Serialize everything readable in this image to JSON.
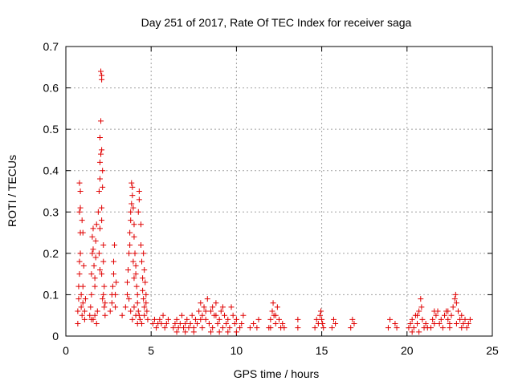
{
  "chart_data": {
    "type": "scatter",
    "title": "Day 251 of 2017, Rate Of TEC Index for receiver saga",
    "xlabel": "GPS time / hours",
    "ylabel": "ROTI / TECUs",
    "xlim": [
      0,
      25
    ],
    "ylim": [
      0,
      0.7
    ],
    "xticks": [
      "0",
      "5",
      "10",
      "15",
      "20",
      "25"
    ],
    "yticks": [
      "0",
      "0.1",
      "0.2",
      "0.3",
      "0.4",
      "0.5",
      "0.6",
      "0.7"
    ],
    "grid": true,
    "marker": "+",
    "color": "#e00000",
    "points": [
      [
        0.7,
        0.03
      ],
      [
        0.7,
        0.06
      ],
      [
        0.75,
        0.09
      ],
      [
        0.75,
        0.12
      ],
      [
        0.8,
        0.15
      ],
      [
        0.8,
        0.18
      ],
      [
        0.85,
        0.2
      ],
      [
        0.85,
        0.25
      ],
      [
        0.8,
        0.3
      ],
      [
        0.85,
        0.31
      ],
      [
        0.85,
        0.35
      ],
      [
        0.8,
        0.37
      ],
      [
        0.9,
        0.1
      ],
      [
        0.9,
        0.07
      ],
      [
        0.95,
        0.05
      ],
      [
        1.0,
        0.08
      ],
      [
        1.0,
        0.12
      ],
      [
        1.05,
        0.17
      ],
      [
        1.0,
        0.25
      ],
      [
        0.95,
        0.28
      ],
      [
        1.1,
        0.06
      ],
      [
        1.1,
        0.04
      ],
      [
        1.15,
        0.09
      ],
      [
        1.4,
        0.05
      ],
      [
        1.45,
        0.07
      ],
      [
        1.5,
        0.1
      ],
      [
        1.5,
        0.15
      ],
      [
        1.55,
        0.2
      ],
      [
        1.55,
        0.24
      ],
      [
        1.6,
        0.26
      ],
      [
        1.6,
        0.21
      ],
      [
        1.65,
        0.17
      ],
      [
        1.7,
        0.14
      ],
      [
        1.7,
        0.12
      ],
      [
        1.75,
        0.19
      ],
      [
        1.75,
        0.23
      ],
      [
        1.8,
        0.27
      ],
      [
        1.6,
        0.04
      ],
      [
        1.7,
        0.05
      ],
      [
        1.8,
        0.03
      ],
      [
        1.85,
        0.06
      ],
      [
        1.5,
        0.04
      ],
      [
        1.9,
        0.3
      ],
      [
        1.95,
        0.35
      ],
      [
        2.0,
        0.38
      ],
      [
        2.0,
        0.42
      ],
      [
        2.05,
        0.44
      ],
      [
        2.1,
        0.45
      ],
      [
        2.0,
        0.48
      ],
      [
        2.05,
        0.52
      ],
      [
        2.1,
        0.62
      ],
      [
        2.1,
        0.63
      ],
      [
        2.05,
        0.64
      ],
      [
        2.15,
        0.4
      ],
      [
        2.15,
        0.36
      ],
      [
        2.1,
        0.31
      ],
      [
        2.0,
        0.26
      ],
      [
        2.2,
        0.22
      ],
      [
        2.2,
        0.18
      ],
      [
        2.1,
        0.15
      ],
      [
        2.25,
        0.12
      ],
      [
        2.2,
        0.1
      ],
      [
        2.3,
        0.08
      ],
      [
        2.3,
        0.05
      ],
      [
        1.95,
        0.2
      ],
      [
        2.0,
        0.16
      ],
      [
        2.15,
        0.09
      ],
      [
        2.25,
        0.07
      ],
      [
        2.1,
        0.28
      ],
      [
        2.6,
        0.06
      ],
      [
        2.7,
        0.08
      ],
      [
        2.7,
        0.1
      ],
      [
        2.75,
        0.12
      ],
      [
        2.8,
        0.15
      ],
      [
        2.8,
        0.18
      ],
      [
        2.85,
        0.22
      ],
      [
        2.9,
        0.1
      ],
      [
        2.9,
        0.07
      ],
      [
        2.95,
        0.13
      ],
      [
        3.3,
        0.05
      ],
      [
        3.5,
        0.07
      ],
      [
        3.6,
        0.1
      ],
      [
        3.6,
        0.13
      ],
      [
        3.65,
        0.16
      ],
      [
        3.7,
        0.2
      ],
      [
        3.75,
        0.22
      ],
      [
        3.75,
        0.25
      ],
      [
        3.8,
        0.28
      ],
      [
        3.8,
        0.3
      ],
      [
        3.85,
        0.32
      ],
      [
        3.9,
        0.34
      ],
      [
        3.9,
        0.36
      ],
      [
        3.85,
        0.37
      ],
      [
        3.95,
        0.31
      ],
      [
        4.0,
        0.27
      ],
      [
        4.0,
        0.24
      ],
      [
        4.05,
        0.2
      ],
      [
        4.1,
        0.17
      ],
      [
        4.1,
        0.15
      ],
      [
        4.15,
        0.12
      ],
      [
        4.2,
        0.1
      ],
      [
        4.2,
        0.08
      ],
      [
        4.25,
        0.06
      ],
      [
        4.3,
        0.05
      ],
      [
        4.35,
        0.04
      ],
      [
        4.25,
        0.3
      ],
      [
        4.3,
        0.35
      ],
      [
        4.3,
        0.33
      ],
      [
        4.4,
        0.27
      ],
      [
        4.4,
        0.22
      ],
      [
        4.45,
        0.18
      ],
      [
        4.5,
        0.14
      ],
      [
        4.5,
        0.11
      ],
      [
        4.55,
        0.09
      ],
      [
        4.6,
        0.07
      ],
      [
        4.6,
        0.05
      ],
      [
        4.65,
        0.13
      ],
      [
        4.7,
        0.1
      ],
      [
        4.7,
        0.08
      ],
      [
        4.75,
        0.06
      ],
      [
        4.8,
        0.04
      ],
      [
        3.7,
        0.09
      ],
      [
        3.8,
        0.06
      ],
      [
        3.9,
        0.04
      ],
      [
        4.0,
        0.07
      ],
      [
        4.1,
        0.05
      ],
      [
        4.2,
        0.03
      ],
      [
        4.45,
        0.03
      ],
      [
        4.55,
        0.2
      ],
      [
        4.6,
        0.16
      ],
      [
        4.0,
        0.14
      ],
      [
        3.95,
        0.18
      ],
      [
        5.1,
        0.03
      ],
      [
        5.2,
        0.04
      ],
      [
        5.3,
        0.02
      ],
      [
        5.4,
        0.03
      ],
      [
        5.5,
        0.04
      ],
      [
        5.6,
        0.03
      ],
      [
        5.7,
        0.05
      ],
      [
        5.8,
        0.02
      ],
      [
        5.9,
        0.03
      ],
      [
        6.0,
        0.04
      ],
      [
        6.3,
        0.02
      ],
      [
        6.4,
        0.03
      ],
      [
        6.5,
        0.04
      ],
      [
        6.6,
        0.02
      ],
      [
        6.7,
        0.03
      ],
      [
        6.8,
        0.05
      ],
      [
        6.9,
        0.02
      ],
      [
        7.0,
        0.03
      ],
      [
        7.1,
        0.04
      ],
      [
        7.2,
        0.02
      ],
      [
        7.3,
        0.03
      ],
      [
        7.4,
        0.05
      ],
      [
        7.5,
        0.02
      ],
      [
        7.6,
        0.04
      ],
      [
        7.7,
        0.03
      ],
      [
        7.8,
        0.06
      ],
      [
        7.9,
        0.08
      ],
      [
        8.0,
        0.05
      ],
      [
        8.1,
        0.07
      ],
      [
        8.2,
        0.04
      ],
      [
        8.3,
        0.09
      ],
      [
        8.4,
        0.03
      ],
      [
        8.5,
        0.06
      ],
      [
        8.6,
        0.02
      ],
      [
        8.7,
        0.05
      ],
      [
        8.8,
        0.08
      ],
      [
        8.9,
        0.03
      ],
      [
        9.0,
        0.04
      ],
      [
        9.1,
        0.06
      ],
      [
        9.2,
        0.02
      ],
      [
        9.3,
        0.05
      ],
      [
        9.4,
        0.03
      ],
      [
        9.5,
        0.04
      ],
      [
        9.6,
        0.02
      ],
      [
        9.7,
        0.07
      ],
      [
        9.8,
        0.05
      ],
      [
        9.9,
        0.03
      ],
      [
        10.0,
        0.04
      ],
      [
        10.2,
        0.02
      ],
      [
        10.3,
        0.03
      ],
      [
        10.4,
        0.05
      ],
      [
        6.5,
        0.01
      ],
      [
        7.0,
        0.01
      ],
      [
        7.5,
        0.01
      ],
      [
        8.0,
        0.02
      ],
      [
        8.5,
        0.01
      ],
      [
        9.0,
        0.01
      ],
      [
        9.5,
        0.01
      ],
      [
        10.0,
        0.01
      ],
      [
        8.2,
        0.06
      ],
      [
        8.6,
        0.07
      ],
      [
        9.2,
        0.07
      ],
      [
        7.9,
        0.04
      ],
      [
        8.8,
        0.05
      ],
      [
        10.8,
        0.02
      ],
      [
        11.0,
        0.03
      ],
      [
        11.2,
        0.02
      ],
      [
        11.3,
        0.04
      ],
      [
        11.9,
        0.02
      ],
      [
        12.0,
        0.04
      ],
      [
        12.1,
        0.06
      ],
      [
        12.15,
        0.08
      ],
      [
        12.2,
        0.05
      ],
      [
        12.3,
        0.03
      ],
      [
        12.4,
        0.07
      ],
      [
        12.5,
        0.04
      ],
      [
        12.6,
        0.02
      ],
      [
        12.7,
        0.03
      ],
      [
        12.8,
        0.02
      ],
      [
        12.0,
        0.02
      ],
      [
        12.3,
        0.05
      ],
      [
        13.6,
        0.02
      ],
      [
        13.6,
        0.04
      ],
      [
        14.6,
        0.02
      ],
      [
        14.8,
        0.03
      ],
      [
        14.9,
        0.05
      ],
      [
        14.95,
        0.06
      ],
      [
        15.0,
        0.04
      ],
      [
        15.05,
        0.03
      ],
      [
        15.1,
        0.02
      ],
      [
        14.7,
        0.04
      ],
      [
        15.6,
        0.02
      ],
      [
        15.7,
        0.04
      ],
      [
        15.8,
        0.03
      ],
      [
        16.7,
        0.02
      ],
      [
        16.8,
        0.04
      ],
      [
        16.9,
        0.03
      ],
      [
        18.9,
        0.02
      ],
      [
        19.0,
        0.04
      ],
      [
        19.3,
        0.03
      ],
      [
        19.4,
        0.02
      ],
      [
        20.1,
        0.02
      ],
      [
        20.2,
        0.03
      ],
      [
        20.3,
        0.04
      ],
      [
        20.4,
        0.02
      ],
      [
        20.5,
        0.05
      ],
      [
        20.6,
        0.03
      ],
      [
        20.7,
        0.06
      ],
      [
        20.8,
        0.09
      ],
      [
        20.9,
        0.04
      ],
      [
        21.0,
        0.02
      ],
      [
        21.1,
        0.03
      ],
      [
        21.2,
        0.02
      ],
      [
        20.3,
        0.01
      ],
      [
        20.7,
        0.01
      ],
      [
        20.85,
        0.07
      ],
      [
        20.6,
        0.05
      ],
      [
        21.4,
        0.02
      ],
      [
        21.5,
        0.04
      ],
      [
        21.6,
        0.03
      ],
      [
        21.7,
        0.05
      ],
      [
        21.8,
        0.06
      ],
      [
        21.9,
        0.03
      ],
      [
        22.0,
        0.04
      ],
      [
        22.1,
        0.02
      ],
      [
        22.2,
        0.05
      ],
      [
        22.3,
        0.06
      ],
      [
        22.4,
        0.04
      ],
      [
        22.5,
        0.03
      ],
      [
        22.6,
        0.05
      ],
      [
        22.7,
        0.07
      ],
      [
        22.8,
        0.09
      ],
      [
        22.85,
        0.1
      ],
      [
        22.9,
        0.08
      ],
      [
        23.0,
        0.06
      ],
      [
        23.1,
        0.04
      ],
      [
        23.2,
        0.05
      ],
      [
        23.3,
        0.03
      ],
      [
        23.4,
        0.04
      ],
      [
        23.5,
        0.02
      ],
      [
        23.6,
        0.03
      ],
      [
        23.7,
        0.04
      ],
      [
        22.5,
        0.02
      ],
      [
        22.9,
        0.03
      ],
      [
        23.2,
        0.02
      ],
      [
        21.6,
        0.06
      ],
      [
        22.4,
        0.06
      ]
    ]
  }
}
